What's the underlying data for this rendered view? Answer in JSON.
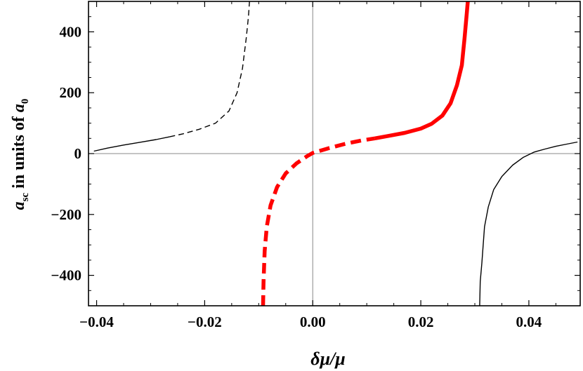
{
  "chart_data": {
    "type": "line",
    "title": "",
    "xlabel": "δμ/μ",
    "ylabel": {
      "var": "a",
      "sub_var": "sc",
      "middle": " in units of ",
      "unit": "a",
      "sub_unit": "0"
    },
    "xlim": [
      -0.0415,
      0.0495
    ],
    "ylim": [
      -500,
      500
    ],
    "x_ticks": [
      -0.04,
      -0.02,
      0.0,
      0.02,
      0.04
    ],
    "x_tick_labels": [
      "−0.04",
      "−0.02",
      "0.00",
      "0.02",
      "0.04"
    ],
    "y_ticks": [
      -400,
      -200,
      0,
      200,
      400
    ],
    "y_tick_labels": [
      "−400",
      "−200",
      "0",
      "200",
      "400"
    ],
    "grid": false,
    "zero_lines": true,
    "legend": "none",
    "series": [
      {
        "color": "#000000",
        "style": "thin-solid",
        "points": [
          [
            -0.0405,
            8
          ],
          [
            -0.038,
            18
          ],
          [
            -0.035,
            28
          ],
          [
            -0.032,
            37
          ],
          [
            -0.029,
            46
          ],
          [
            -0.0265,
            55
          ]
        ]
      },
      {
        "color": "#000000",
        "style": "thin-dashed",
        "points": [
          [
            -0.0265,
            55
          ],
          [
            -0.024,
            65
          ],
          [
            -0.021,
            80
          ],
          [
            -0.018,
            100
          ],
          [
            -0.0155,
            140
          ],
          [
            -0.014,
            200
          ],
          [
            -0.013,
            280
          ],
          [
            -0.0123,
            380
          ],
          [
            -0.0119,
            450
          ],
          [
            -0.0117,
            500
          ]
        ]
      },
      {
        "color": "#ff0000",
        "style": "thick-dashed",
        "points": [
          [
            -0.0092,
            -500
          ],
          [
            -0.0091,
            -420
          ],
          [
            -0.0089,
            -320
          ],
          [
            -0.0085,
            -240
          ],
          [
            -0.0078,
            -170
          ],
          [
            -0.0066,
            -110
          ],
          [
            -0.005,
            -65
          ],
          [
            -0.003,
            -32
          ],
          [
            -0.001,
            -8
          ],
          [
            0.0,
            2
          ],
          [
            0.003,
            18
          ],
          [
            0.006,
            32
          ],
          [
            0.009,
            43
          ],
          [
            0.0115,
            50
          ]
        ]
      },
      {
        "color": "#ff0000",
        "style": "thick-solid",
        "points": [
          [
            0.0115,
            50
          ],
          [
            0.014,
            58
          ],
          [
            0.017,
            68
          ],
          [
            0.02,
            82
          ],
          [
            0.022,
            98
          ],
          [
            0.024,
            125
          ],
          [
            0.0255,
            165
          ],
          [
            0.0267,
            225
          ],
          [
            0.0276,
            290
          ],
          [
            0.0281,
            380
          ],
          [
            0.0285,
            460
          ],
          [
            0.0287,
            500
          ]
        ]
      },
      {
        "color": "#000000",
        "style": "thin-solid",
        "points": [
          [
            0.0309,
            -500
          ],
          [
            0.031,
            -420
          ],
          [
            0.0313,
            -360
          ],
          [
            0.0318,
            -240
          ],
          [
            0.0325,
            -175
          ],
          [
            0.0335,
            -118
          ],
          [
            0.035,
            -75
          ],
          [
            0.037,
            -38
          ],
          [
            0.039,
            -12
          ],
          [
            0.041,
            5
          ],
          [
            0.043,
            15
          ],
          [
            0.045,
            24
          ],
          [
            0.047,
            31
          ],
          [
            0.049,
            38
          ]
        ]
      }
    ]
  }
}
